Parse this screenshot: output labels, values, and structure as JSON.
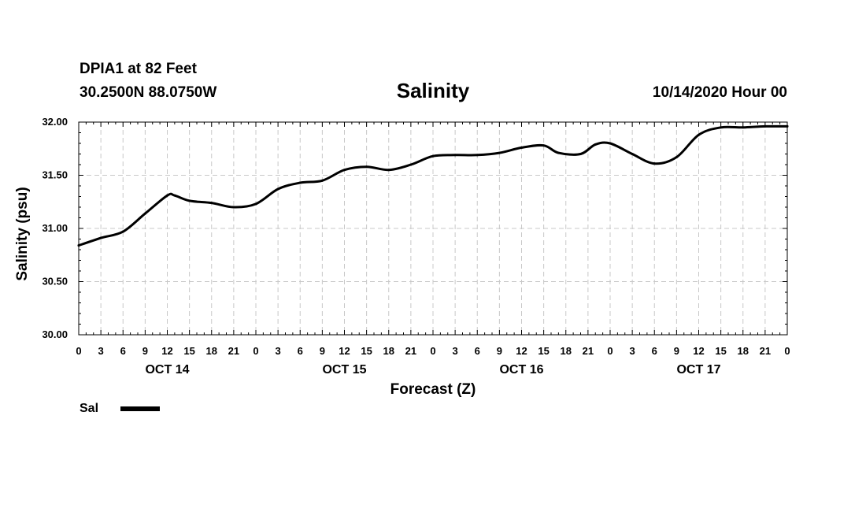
{
  "header": {
    "station": "DPIA1 at 82 Feet",
    "coords": "30.2500N 88.0750W",
    "title": "Salinity",
    "datetime": "10/14/2020 Hour 00"
  },
  "legend": {
    "label": "Sal"
  },
  "chart_data": {
    "type": "line",
    "title": "Salinity",
    "xlabel": "Forecast (Z)",
    "ylabel": "Salinity (psu)",
    "ylim": [
      30.0,
      32.0
    ],
    "yticks": [
      "30.00",
      "30.50",
      "31.00",
      "31.50",
      "32.00"
    ],
    "xlim": [
      0,
      96
    ],
    "xticks": [
      "0",
      "3",
      "6",
      "9",
      "12",
      "15",
      "18",
      "21",
      "0",
      "3",
      "6",
      "9",
      "12",
      "15",
      "18",
      "21",
      "0",
      "3",
      "6",
      "9",
      "12",
      "15",
      "18",
      "21",
      "0",
      "3",
      "6",
      "9",
      "12",
      "15",
      "18",
      "21",
      "0"
    ],
    "day_labels": [
      {
        "label": "OCT 14",
        "hour": 12
      },
      {
        "label": "OCT 15",
        "hour": 36
      },
      {
        "label": "OCT 16",
        "hour": 60
      },
      {
        "label": "OCT 17",
        "hour": 84
      }
    ],
    "grid": true,
    "series": [
      {
        "name": "Sal",
        "color": "#000000",
        "x": [
          0,
          3,
          6,
          9,
          12,
          13,
          15,
          18,
          21,
          24,
          27,
          30,
          33,
          36,
          39,
          42,
          45,
          48,
          51,
          54,
          57,
          60,
          63,
          65,
          68,
          70,
          72,
          75,
          78,
          81,
          84,
          87,
          90,
          93,
          96
        ],
        "values": [
          30.84,
          30.91,
          30.97,
          31.14,
          31.31,
          31.31,
          31.26,
          31.24,
          31.2,
          31.23,
          31.37,
          31.43,
          31.45,
          31.55,
          31.58,
          31.55,
          31.6,
          31.68,
          31.69,
          31.69,
          31.71,
          31.76,
          31.78,
          31.71,
          31.7,
          31.79,
          31.8,
          31.7,
          31.61,
          31.67,
          31.88,
          31.95,
          31.95,
          31.96,
          31.96
        ]
      }
    ]
  }
}
